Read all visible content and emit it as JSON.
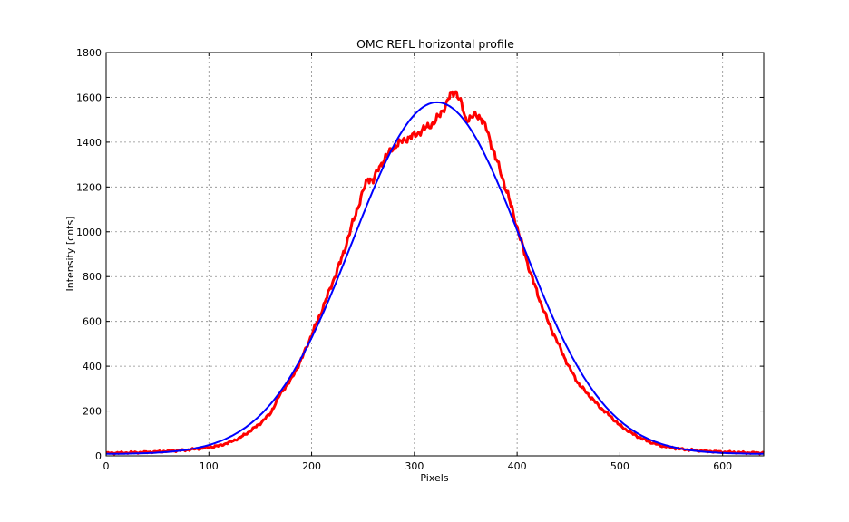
{
  "figure": {
    "background": "#ffffff"
  },
  "chart_data": {
    "type": "line",
    "title": "OMC REFL horizontal profile",
    "xlabel": "Pixels",
    "ylabel": "Intensity [cnts]",
    "xlim": [
      0,
      640
    ],
    "ylim": [
      0,
      1800
    ],
    "xticks": [
      0,
      100,
      200,
      300,
      400,
      500,
      600
    ],
    "yticks": [
      0,
      200,
      400,
      600,
      800,
      1000,
      1200,
      1400,
      1600,
      1800
    ],
    "grid": true,
    "legend": "none",
    "series": [
      {
        "role": "measured",
        "color": "#ff0000",
        "x": [
          0,
          25,
          50,
          75,
          90,
          100,
          110,
          120,
          130,
          140,
          150,
          160,
          170,
          180,
          190,
          200,
          210,
          220,
          230,
          240,
          250,
          255,
          260,
          265,
          270,
          275,
          280,
          290,
          300,
          310,
          320,
          330,
          335,
          340,
          345,
          350,
          355,
          360,
          365,
          370,
          380,
          390,
          400,
          410,
          420,
          430,
          440,
          450,
          460,
          470,
          480,
          490,
          500,
          510,
          520,
          530,
          540,
          560,
          580,
          600,
          620,
          640
        ],
        "y": [
          12,
          14,
          18,
          25,
          32,
          38,
          45,
          60,
          80,
          110,
          145,
          190,
          280,
          340,
          430,
          540,
          650,
          770,
          890,
          1040,
          1180,
          1240,
          1230,
          1280,
          1320,
          1350,
          1380,
          1410,
          1430,
          1460,
          1490,
          1560,
          1610,
          1630,
          1580,
          1500,
          1510,
          1520,
          1510,
          1460,
          1320,
          1180,
          1020,
          860,
          720,
          600,
          500,
          400,
          320,
          270,
          220,
          180,
          135,
          105,
          80,
          60,
          45,
          30,
          22,
          17,
          14,
          13
        ]
      },
      {
        "role": "gaussian fit",
        "color": "#0000ff",
        "amplitude": 1570,
        "center": 322,
        "sigma": 82,
        "offset": 8,
        "x": [
          0,
          40,
          80,
          120,
          160,
          200,
          240,
          280,
          300,
          322,
          340,
          360,
          380,
          400,
          440,
          480,
          520,
          560,
          600,
          640
        ],
        "y": [
          8,
          11,
          22,
          63,
          206,
          556,
          1051,
          1434,
          1537,
          1578,
          1552,
          1411,
          1146,
          1000,
          612,
          238,
          75,
          23,
          12,
          8
        ]
      }
    ]
  }
}
